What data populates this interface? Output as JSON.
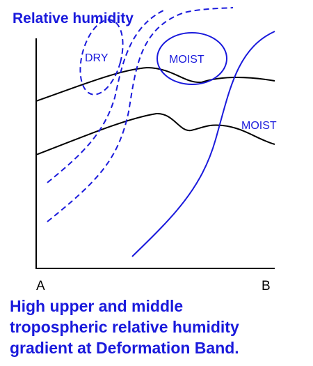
{
  "title": "Relative humidity",
  "labels": {
    "dry": "DRY",
    "moist_upper": "MOIST",
    "moist_lower": "MOIST"
  },
  "axis": {
    "left_end": "A",
    "right_end": "B"
  },
  "caption": [
    "High upper and middle",
    "tropospheric relative humidity",
    "gradient at Deformation Band."
  ]
}
